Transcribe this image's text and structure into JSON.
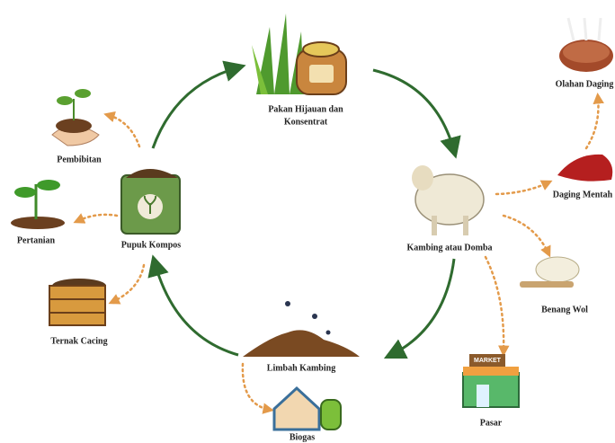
{
  "nodes": [
    {
      "label": [
        "Pakan Hijauan dan",
        "Konsentrat"
      ]
    },
    {
      "label": [
        "Kambing atau Domba"
      ]
    },
    {
      "label": [
        "Limbah Kambing"
      ]
    },
    {
      "label": [
        "Pupuk Kompos"
      ]
    },
    {
      "label": [
        "Pembibitan"
      ]
    },
    {
      "label": [
        "Pertanian"
      ]
    },
    {
      "label": [
        "Ternak Cacing"
      ]
    },
    {
      "label": [
        "Biogas"
      ]
    },
    {
      "label": [
        "Pasar"
      ]
    },
    {
      "label": [
        "Benang Wol"
      ]
    },
    {
      "label": [
        "Daging Mentah"
      ]
    },
    {
      "label": [
        "Olahan Daging"
      ]
    }
  ],
  "market_sign": "MARKET"
}
